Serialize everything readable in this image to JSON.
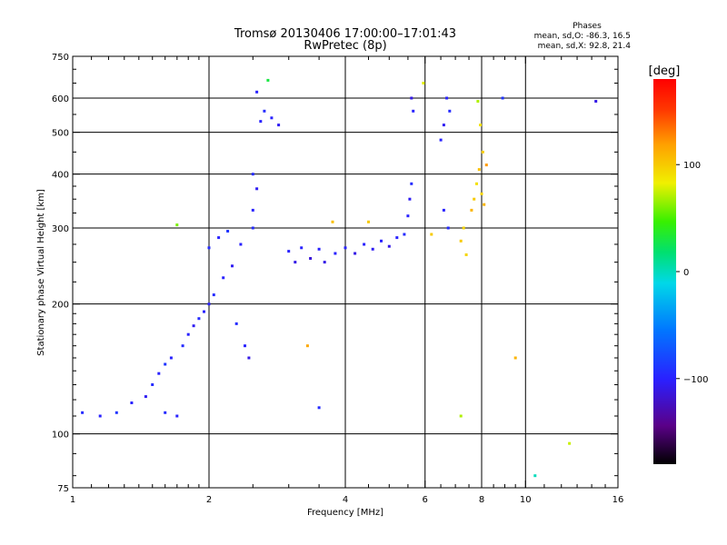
{
  "chart_data": {
    "type": "scatter",
    "title": "Tromsø 20130406 17:00:00–17:01:43",
    "subtitle": "RwPretec (8p)",
    "info": {
      "heading": "Phases",
      "line1": "mean, sd,O: -86.3, 16.5",
      "line2": "mean, sd,X:  92.8, 21.4"
    },
    "xlabel": "Frequency [MHz]",
    "ylabel": "Stationary phase Virtual Height [km]",
    "x_scale": "log",
    "y_scale": "log",
    "xlim": [
      1,
      16
    ],
    "ylim": [
      75,
      750
    ],
    "x_ticks": [
      1,
      2,
      4,
      6,
      8,
      10,
      16
    ],
    "y_ticks": [
      75,
      100,
      200,
      300,
      400,
      500,
      600,
      750
    ],
    "x_gridlines": [
      2,
      4,
      6,
      8,
      10
    ],
    "y_gridlines": [
      100,
      200,
      300,
      400,
      500,
      600
    ],
    "colorbar": {
      "label": "[deg]",
      "range": [
        -180,
        180
      ],
      "ticks": [
        {
          "value": 100,
          "label": "100"
        },
        {
          "value": 0,
          "label": "0"
        },
        {
          "value": -100,
          "label": "−100"
        }
      ]
    },
    "series": [
      {
        "values": [
          [
            1.05,
            112,
            -95
          ],
          [
            1.15,
            110,
            -100
          ],
          [
            1.25,
            112,
            -90
          ],
          [
            1.35,
            118,
            -100
          ],
          [
            1.45,
            122,
            -105
          ],
          [
            1.5,
            130,
            -95
          ],
          [
            1.55,
            138,
            -100
          ],
          [
            1.6,
            145,
            -90
          ],
          [
            1.65,
            150,
            -100
          ],
          [
            1.75,
            160,
            -95
          ],
          [
            1.8,
            170,
            -100
          ],
          [
            1.85,
            178,
            -105
          ],
          [
            1.9,
            185,
            -95
          ],
          [
            1.95,
            192,
            -100
          ],
          [
            1.6,
            112,
            -95
          ],
          [
            1.7,
            110,
            -100
          ]
        ]
      },
      {
        "values": [
          [
            2.0,
            200,
            -100
          ],
          [
            2.05,
            210,
            -95
          ],
          [
            2.15,
            230,
            -100
          ],
          [
            2.25,
            245,
            -105
          ],
          [
            2.3,
            180,
            -95
          ],
          [
            2.4,
            160,
            -100
          ],
          [
            2.45,
            150,
            -110
          ],
          [
            2.0,
            270,
            -95
          ],
          [
            2.1,
            285,
            -100
          ],
          [
            2.2,
            295,
            -90
          ],
          [
            2.35,
            275,
            -100
          ],
          [
            2.5,
            300,
            -95
          ],
          [
            2.5,
            330,
            -100
          ],
          [
            2.55,
            370,
            -105
          ],
          [
            2.5,
            400,
            -95
          ],
          [
            2.6,
            530,
            -100
          ],
          [
            2.65,
            560,
            -95
          ],
          [
            2.75,
            540,
            -100
          ],
          [
            2.85,
            520,
            -105
          ],
          [
            2.55,
            620,
            -100
          ]
        ]
      },
      {
        "values": [
          [
            3.0,
            265,
            -100
          ],
          [
            3.1,
            250,
            -110
          ],
          [
            3.2,
            270,
            -100
          ],
          [
            3.35,
            255,
            -115
          ],
          [
            3.5,
            268,
            -100
          ],
          [
            3.6,
            250,
            -110
          ],
          [
            3.8,
            262,
            -100
          ],
          [
            4.0,
            270,
            -100
          ],
          [
            4.2,
            262,
            -110
          ],
          [
            4.4,
            275,
            -100
          ],
          [
            4.6,
            268,
            -105
          ],
          [
            4.8,
            280,
            -100
          ],
          [
            5.0,
            272,
            -110
          ],
          [
            5.2,
            285,
            -100
          ],
          [
            5.4,
            290,
            -95
          ]
        ]
      },
      {
        "values": [
          [
            5.5,
            320,
            -100
          ],
          [
            5.55,
            350,
            -105
          ],
          [
            5.6,
            380,
            -95
          ],
          [
            5.65,
            560,
            -100
          ],
          [
            5.6,
            600,
            -110
          ],
          [
            6.5,
            480,
            -100
          ],
          [
            6.6,
            520,
            -105
          ],
          [
            6.7,
            600,
            -100
          ],
          [
            6.8,
            560,
            -95
          ],
          [
            6.6,
            330,
            -100
          ],
          [
            6.75,
            300,
            -95
          ]
        ]
      },
      {
        "values": [
          [
            7.6,
            330,
            110
          ],
          [
            7.7,
            350,
            100
          ],
          [
            7.8,
            380,
            90
          ],
          [
            7.9,
            410,
            105
          ],
          [
            8.0,
            360,
            95
          ],
          [
            8.1,
            340,
            110
          ],
          [
            8.05,
            450,
            100
          ],
          [
            7.95,
            520,
            90
          ],
          [
            7.2,
            280,
            100
          ],
          [
            7.4,
            260,
            95
          ],
          [
            3.3,
            160,
            115
          ],
          [
            3.75,
            310,
            105
          ],
          [
            6.2,
            290,
            100
          ],
          [
            7.3,
            300,
            95
          ],
          [
            4.5,
            310,
            100
          ]
        ]
      },
      {
        "values": [
          [
            2.7,
            660,
            30
          ],
          [
            1.7,
            305,
            60
          ],
          [
            5.95,
            650,
            80
          ],
          [
            7.85,
            590,
            70
          ],
          [
            8.2,
            420,
            120
          ],
          [
            3.5,
            115,
            -95
          ]
        ]
      },
      {
        "values": [
          [
            8.9,
            600,
            -90
          ],
          [
            10.5,
            80,
            0
          ],
          [
            7.2,
            110,
            70
          ],
          [
            12.5,
            95,
            75
          ],
          [
            9.5,
            150,
            110
          ],
          [
            14.3,
            590,
            -110
          ]
        ]
      }
    ]
  }
}
